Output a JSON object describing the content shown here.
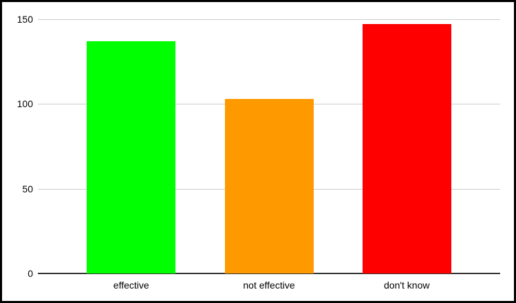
{
  "chart_data": {
    "type": "bar",
    "title": "",
    "xlabel": "",
    "ylabel": "",
    "categories": [
      "effective",
      "not effective",
      "don't know"
    ],
    "values": [
      137,
      103,
      147
    ],
    "bar_colors": [
      "#00ff00",
      "#ff9900",
      "#ff0000"
    ],
    "ylim": [
      0,
      150
    ],
    "yticks": [
      0,
      50,
      100,
      150
    ],
    "grid": "horizontal-gridlines-on",
    "legend": "none",
    "gridline_color": "#cccccc",
    "axis_color": "#333333",
    "text_color": "#000000",
    "background_color": "#ffffff",
    "frame_border_color": "#000000"
  }
}
